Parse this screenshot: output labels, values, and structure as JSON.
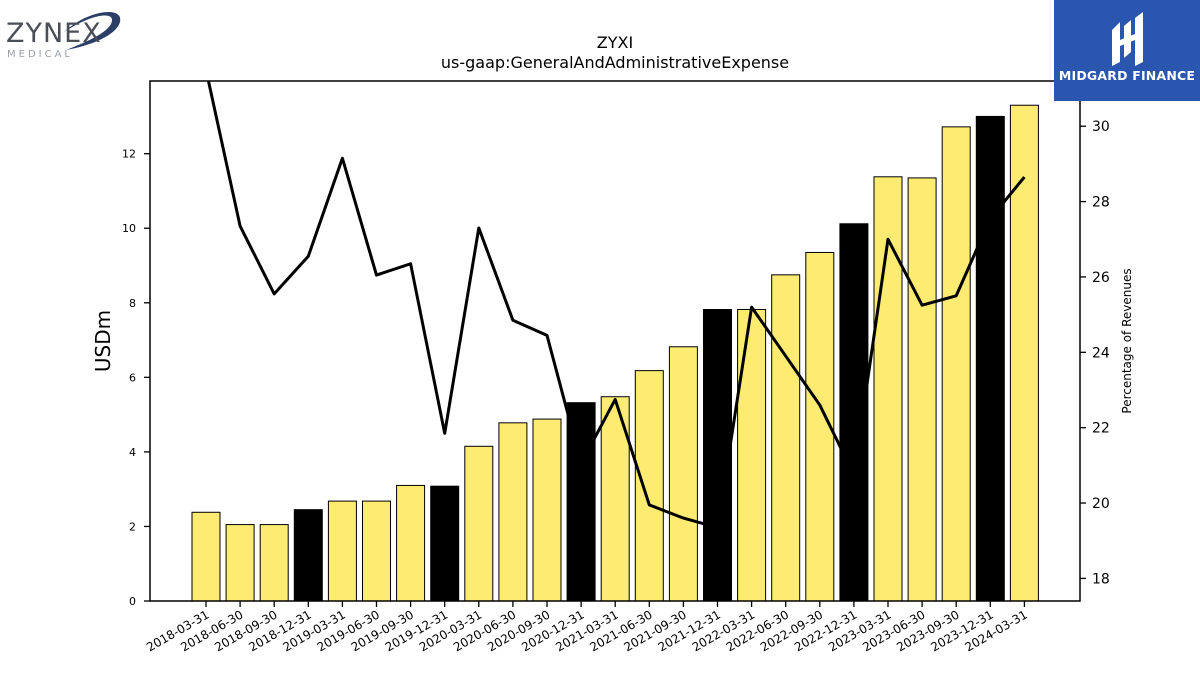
{
  "logos": {
    "left": {
      "title": "ZYNEX",
      "subtitle": "MEDICAL"
    },
    "right": {
      "name": "MIDGARD FINANCE"
    }
  },
  "chart_data": {
    "type": "bar",
    "title": "ZYXI",
    "subtitle": "us-gaap:GeneralAndAdministrativeExpense",
    "ylabel": "USDm",
    "y2label": "Percentage of Revenues",
    "ylim": [
      0,
      13.95
    ],
    "y2lim": [
      17.4,
      31.2
    ],
    "yticks": [
      0,
      2,
      4,
      6,
      8,
      10,
      12
    ],
    "y2ticks": [
      18,
      20,
      22,
      24,
      26,
      28,
      30
    ],
    "grid": false,
    "categories": [
      "2018-03-31",
      "2018-06-30",
      "2018-09-30",
      "2018-12-31",
      "2019-03-31",
      "2019-06-30",
      "2019-09-30",
      "2019-12-31",
      "2020-03-31",
      "2020-06-30",
      "2020-09-30",
      "2020-12-31",
      "2021-03-31",
      "2021-06-30",
      "2021-09-30",
      "2021-12-31",
      "2022-03-31",
      "2022-06-30",
      "2022-09-30",
      "2022-12-31",
      "2023-03-31",
      "2023-06-30",
      "2023-09-30",
      "2023-12-31",
      "2024-03-31"
    ],
    "series": [
      {
        "kind": "bar",
        "values": [
          2.38,
          2.05,
          2.05,
          2.45,
          2.68,
          2.68,
          3.1,
          3.08,
          4.15,
          4.78,
          4.88,
          5.32,
          5.48,
          6.18,
          6.82,
          7.82,
          7.82,
          8.75,
          9.35,
          10.12,
          11.38,
          11.35,
          12.72,
          13.0,
          13.3
        ],
        "colors": [
          "#fdeb72",
          "#fdeb72",
          "#fdeb72",
          "#000000",
          "#fdeb72",
          "#fdeb72",
          "#fdeb72",
          "#000000",
          "#fdeb72",
          "#fdeb72",
          "#fdeb72",
          "#000000",
          "#fdeb72",
          "#fdeb72",
          "#fdeb72",
          "#000000",
          "#fdeb72",
          "#fdeb72",
          "#fdeb72",
          "#000000",
          "#fdeb72",
          "#fdeb72",
          "#fdeb72",
          "#000000",
          "#fdeb72"
        ]
      },
      {
        "kind": "line",
        "axis": "right",
        "values": [
          31.5,
          27.35,
          25.55,
          26.55,
          29.15,
          26.05,
          26.35,
          21.85,
          27.3,
          24.85,
          24.45,
          21.05,
          22.75,
          19.95,
          19.6,
          19.35,
          25.2,
          23.9,
          22.6,
          20.75,
          27.0,
          25.25,
          25.5,
          27.55,
          28.65
        ]
      }
    ],
    "colors": {
      "bar_highlight": "#000000",
      "bar_default": "#fdeb72",
      "line": "#000000"
    }
  }
}
